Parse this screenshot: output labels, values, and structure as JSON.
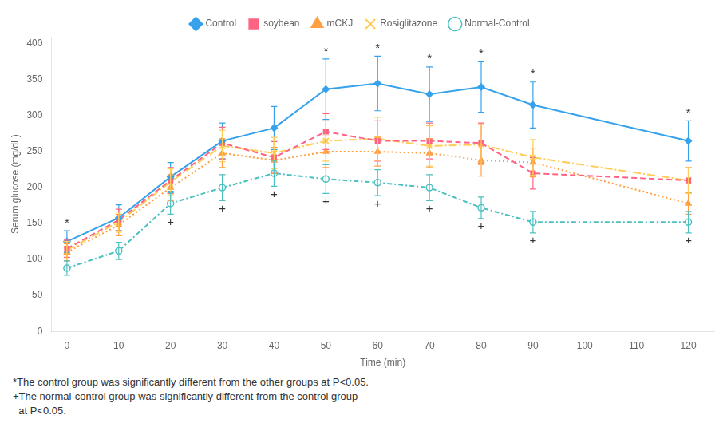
{
  "chart_data": {
    "type": "line",
    "xlabel": "Time (min)",
    "ylabel": "Serum glucose (mg/dL)",
    "x": [
      0,
      10,
      20,
      30,
      40,
      50,
      60,
      70,
      80,
      90,
      120
    ],
    "series": [
      {
        "name": "Control",
        "values": [
          125,
          158,
          215,
          265,
          283,
          337,
          345,
          330,
          340,
          315,
          265
        ],
        "yerr": [
          15,
          18,
          20,
          25,
          30,
          42,
          38,
          38,
          35,
          32,
          28
        ],
        "marker": "diamond",
        "line_style": "solid"
      },
      {
        "name": "soybean",
        "values": [
          115,
          155,
          210,
          262,
          242,
          278,
          265,
          265,
          262,
          220,
          210
        ],
        "yerr": [
          12,
          15,
          18,
          22,
          22,
          25,
          28,
          25,
          28,
          22,
          18
        ],
        "marker": "square",
        "line_style": "dashed"
      },
      {
        "name": "mCKJ",
        "values": [
          110,
          148,
          200,
          248,
          238,
          250,
          250,
          248,
          238,
          235,
          178
        ],
        "yerr": [
          12,
          15,
          18,
          20,
          18,
          22,
          20,
          20,
          22,
          20,
          15
        ],
        "marker": "triangle",
        "line_style": "dotted"
      },
      {
        "name": "Rosiglitazone",
        "values": [
          113,
          152,
          208,
          258,
          248,
          265,
          268,
          258,
          260,
          242,
          210
        ],
        "yerr": [
          12,
          14,
          18,
          22,
          22,
          28,
          30,
          28,
          28,
          25,
          18
        ],
        "marker": "x",
        "line_style": "longdashdot"
      },
      {
        "name": "Normal-Control",
        "values": [
          88,
          112,
          178,
          200,
          220,
          212,
          207,
          200,
          172,
          152,
          152
        ],
        "yerr": [
          10,
          12,
          15,
          18,
          18,
          20,
          18,
          18,
          15,
          15,
          15
        ],
        "marker": "circle",
        "line_style": "dashdot"
      }
    ],
    "annotations": [
      {
        "text": "*",
        "series": "Control",
        "x": [
          0,
          50,
          60,
          70,
          80,
          90,
          120
        ],
        "position": "above"
      },
      {
        "text": "+",
        "series": "Normal-Control",
        "x": [
          20,
          30,
          40,
          50,
          60,
          70,
          80,
          90,
          120
        ],
        "position": "below"
      }
    ],
    "footnotes": [
      "*The control group was significantly different from the other groups at P<0.05.",
      "+The normal-control group was significantly different from the control group",
      "  at P<0.05."
    ],
    "xlim": [
      -3,
      125
    ],
    "xticks": [
      0,
      10,
      20,
      30,
      40,
      50,
      60,
      70,
      80,
      90,
      100,
      110,
      120
    ],
    "ylim": [
      0,
      410
    ],
    "yticks": [
      0,
      50,
      100,
      150,
      200,
      250,
      300,
      350,
      400
    ],
    "grid": false,
    "legend": "top"
  }
}
